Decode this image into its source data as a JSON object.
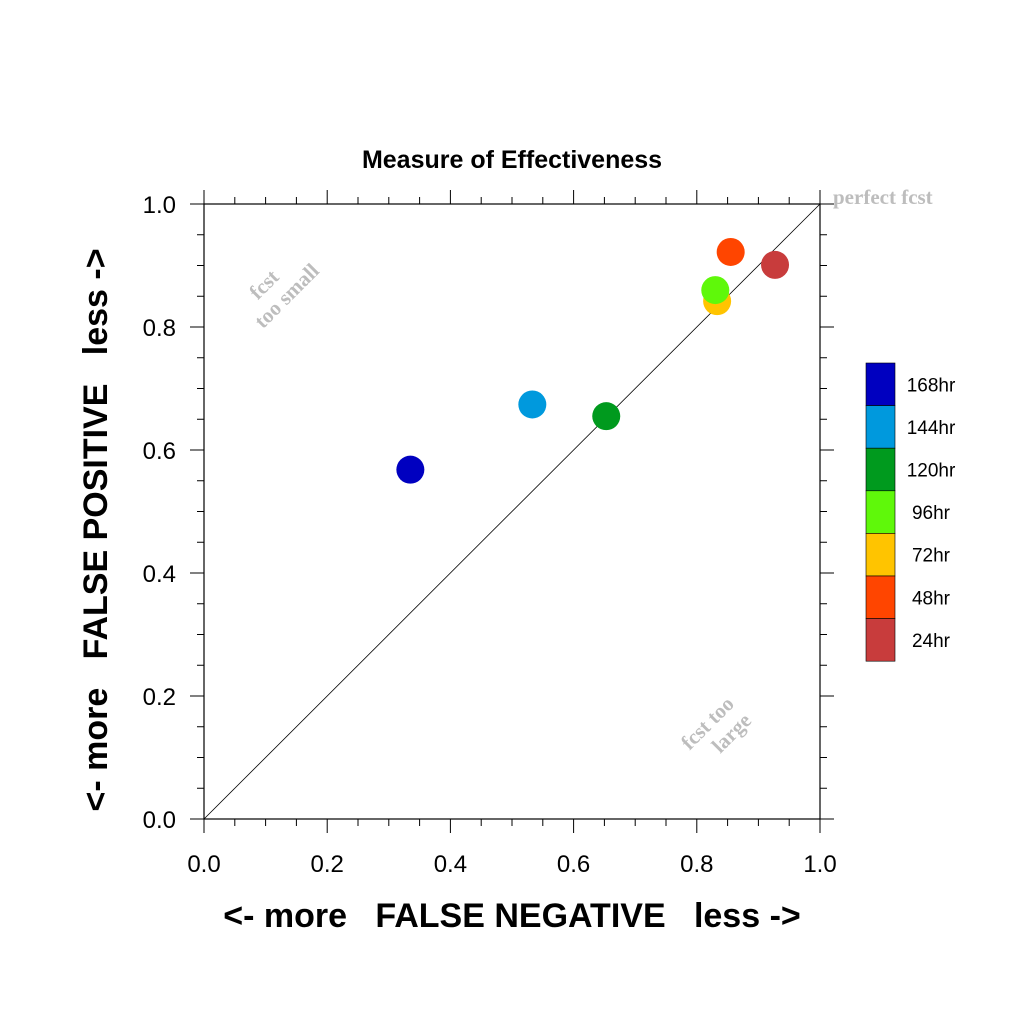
{
  "chart_data": {
    "type": "scatter",
    "title": "Measure of Effectiveness",
    "xlabel": "<- more   FALSE NEGATIVE   less ->",
    "ylabel": "<- more   FALSE POSITIVE   less ->",
    "xlim": [
      0.0,
      1.0
    ],
    "ylim": [
      0.0,
      1.0
    ],
    "x_ticks": [
      "0.0",
      "0.2",
      "0.4",
      "0.6",
      "0.8",
      "1.0"
    ],
    "y_ticks": [
      "0.0",
      "0.2",
      "0.4",
      "0.6",
      "0.8",
      "1.0"
    ],
    "grid": false,
    "reference_line": {
      "from": [
        0,
        0
      ],
      "to": [
        1,
        1
      ]
    },
    "annotations": {
      "perfect": "perfect fcst",
      "too_small_1": "fcst",
      "too_small_2": "too small",
      "too_large_1": "fcst too",
      "too_large_2": "large"
    },
    "legend": {
      "placement": "right",
      "entries": [
        {
          "label": "168hr",
          "color": "#0000c0"
        },
        {
          "label": "144hr",
          "color": "#0099dd"
        },
        {
          "label": "120hr",
          "color": "#009a1e"
        },
        {
          "label": "96hr",
          "color": "#5ff80a"
        },
        {
          "label": "72hr",
          "color": "#ffc400"
        },
        {
          "label": "48hr",
          "color": "#ff4500"
        },
        {
          "label": "24hr",
          "color": "#c83c3c"
        }
      ]
    },
    "points": [
      {
        "lead": "168hr",
        "x": 0.335,
        "y": 0.568,
        "color": "#0000c0"
      },
      {
        "lead": "144hr",
        "x": 0.533,
        "y": 0.674,
        "color": "#0099dd"
      },
      {
        "lead": "120hr",
        "x": 0.653,
        "y": 0.655,
        "color": "#009a1e"
      },
      {
        "lead": "72hr",
        "x": 0.833,
        "y": 0.842,
        "color": "#ffc400"
      },
      {
        "lead": "96hr",
        "x": 0.83,
        "y": 0.86,
        "color": "#5ff80a"
      },
      {
        "lead": "48hr",
        "x": 0.855,
        "y": 0.922,
        "color": "#ff4500"
      },
      {
        "lead": "24hr",
        "x": 0.927,
        "y": 0.901,
        "color": "#c83c3c"
      }
    ]
  }
}
